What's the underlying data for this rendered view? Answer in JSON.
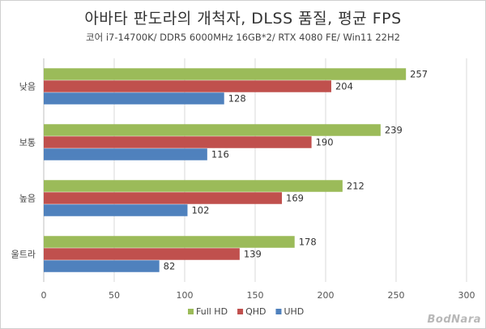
{
  "chart_data": {
    "type": "bar",
    "orientation": "horizontal",
    "title": "아바타 판도라의 개척자, DLSS 품질, 평균 FPS",
    "subtitle": "코어 i7-14700K/ DDR5 6000MHz 16GB*2/ RTX 4080 FE/ Win11 22H2",
    "categories": [
      "낮음",
      "보통",
      "높음",
      "울트라"
    ],
    "series": [
      {
        "name": "Full HD",
        "color": "#9bbb59",
        "values": [
          257,
          239,
          212,
          178
        ]
      },
      {
        "name": "QHD",
        "color": "#c0504d",
        "values": [
          204,
          190,
          169,
          139
        ]
      },
      {
        "name": "UHD",
        "color": "#4f81bd",
        "values": [
          128,
          116,
          102,
          82
        ]
      }
    ],
    "xlim": [
      0,
      300
    ],
    "xticks": [
      "0",
      "50",
      "100",
      "150",
      "200",
      "250",
      "300"
    ],
    "grid": true,
    "legend": "bottom"
  },
  "watermark": "BodNara"
}
